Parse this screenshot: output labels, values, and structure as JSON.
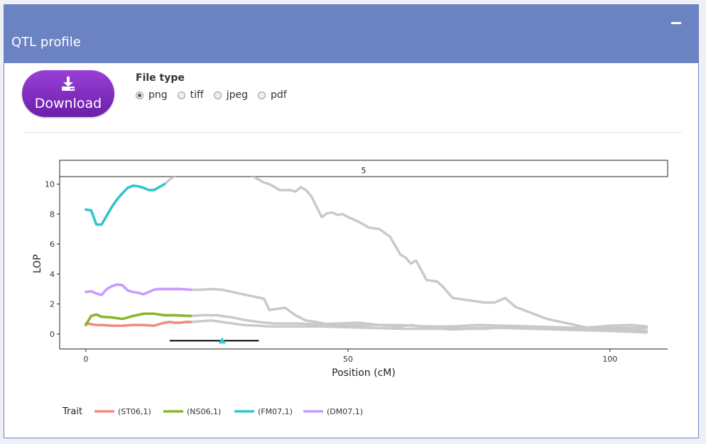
{
  "panel": {
    "title": "QTL profile"
  },
  "download": {
    "label": "Download",
    "icon": "download-icon"
  },
  "file_type": {
    "label": "File type",
    "options": [
      "png",
      "tiff",
      "jpeg",
      "pdf"
    ],
    "selected": "png"
  },
  "chart_data": {
    "type": "line",
    "facet_label": "5",
    "xlabel": "Position (cM)",
    "ylabel": "LOP",
    "xlim": [
      -5,
      111
    ],
    "ylim": [
      -1,
      10.5
    ],
    "x_ticks": [
      0,
      50,
      100
    ],
    "y_ticks": [
      0,
      2,
      4,
      6,
      8,
      10
    ],
    "legend": {
      "title": "Trait",
      "position": "bottom",
      "entries": [
        {
          "label": "(ST06,1)",
          "color": "#f28b82"
        },
        {
          "label": "(NS06,1)",
          "color": "#8ab62a"
        },
        {
          "label": "(FM07,1)",
          "color": "#2fc6ce"
        },
        {
          "label": "(DM07,1)",
          "color": "#cc99ff"
        }
      ]
    },
    "support_interval": {
      "x_start": 16,
      "x_end": 33,
      "peak": 26,
      "y": -0.45
    },
    "series": [
      {
        "name": "(ST06,1)",
        "color": "#f28b82",
        "highlight_until": 20,
        "x": [
          0,
          1,
          2,
          3,
          5,
          7,
          9,
          11,
          13,
          14,
          15,
          16,
          17,
          18,
          19,
          20,
          22,
          24,
          26,
          28,
          30,
          33,
          35,
          38,
          42,
          45,
          50,
          55,
          60,
          65,
          70,
          75,
          80,
          85,
          90,
          95,
          100,
          104,
          107
        ],
        "y": [
          0.7,
          0.65,
          0.6,
          0.6,
          0.55,
          0.55,
          0.6,
          0.6,
          0.55,
          0.65,
          0.75,
          0.8,
          0.75,
          0.75,
          0.8,
          0.8,
          0.85,
          0.9,
          0.8,
          0.7,
          0.6,
          0.55,
          0.5,
          0.5,
          0.5,
          0.5,
          0.45,
          0.4,
          0.35,
          0.35,
          0.35,
          0.4,
          0.4,
          0.35,
          0.3,
          0.25,
          0.2,
          0.15,
          0.1
        ]
      },
      {
        "name": "(NS06,1)",
        "color": "#8ab62a",
        "highlight_until": 20,
        "x": [
          0,
          0.5,
          1,
          2,
          3,
          5,
          7,
          9,
          11,
          13,
          15,
          17,
          20,
          22,
          25,
          28,
          30,
          33,
          36,
          40,
          44,
          48,
          52,
          56,
          58,
          60,
          62,
          64,
          66,
          68,
          70,
          73,
          76,
          80,
          85,
          90,
          95,
          100,
          104,
          107
        ],
        "y": [
          0.6,
          0.9,
          1.2,
          1.3,
          1.15,
          1.1,
          1.0,
          1.2,
          1.35,
          1.35,
          1.25,
          1.25,
          1.2,
          1.25,
          1.25,
          1.1,
          0.95,
          0.8,
          0.7,
          0.7,
          0.65,
          0.7,
          0.75,
          0.6,
          0.55,
          0.5,
          0.6,
          0.5,
          0.45,
          0.35,
          0.3,
          0.35,
          0.35,
          0.45,
          0.4,
          0.35,
          0.3,
          0.4,
          0.4,
          0.4
        ]
      },
      {
        "name": "(FM07,1)",
        "color": "#2fc6ce",
        "highlight_until": 15,
        "x": [
          0,
          1,
          2,
          3,
          4,
          5,
          6,
          7,
          8,
          9,
          10,
          11,
          12,
          13,
          14,
          15,
          16,
          18,
          20,
          24,
          28,
          32,
          34,
          35,
          36,
          37,
          38,
          39,
          40,
          41,
          42,
          43,
          44,
          45,
          46,
          47,
          48,
          49,
          50,
          52,
          54,
          56,
          58,
          60,
          61,
          62,
          63,
          65,
          67,
          68,
          69,
          70,
          72,
          74,
          76,
          78,
          80,
          82,
          85,
          88,
          92,
          96,
          100,
          104,
          107
        ],
        "y": [
          8.3,
          8.25,
          7.3,
          7.3,
          7.9,
          8.5,
          9.0,
          9.4,
          9.75,
          9.9,
          9.85,
          9.75,
          9.6,
          9.6,
          9.8,
          10.0,
          10.3,
          10.8,
          11.2,
          11.4,
          11.2,
          10.5,
          10.1,
          10.0,
          9.8,
          9.6,
          9.6,
          9.6,
          9.5,
          9.8,
          9.6,
          9.2,
          8.5,
          7.8,
          8.05,
          8.1,
          7.95,
          8.0,
          7.8,
          7.5,
          7.1,
          7.0,
          6.5,
          5.3,
          5.1,
          4.7,
          4.9,
          3.6,
          3.5,
          3.2,
          2.8,
          2.4,
          2.3,
          2.2,
          2.1,
          2.1,
          2.4,
          1.8,
          1.4,
          1.0,
          0.7,
          0.4,
          0.3,
          0.3,
          0.2
        ]
      },
      {
        "name": "(DM07,1)",
        "color": "#cc99ff",
        "highlight_until": 20,
        "x": [
          0,
          1,
          2,
          3,
          4,
          5,
          6,
          7,
          8,
          9,
          10,
          11,
          12,
          13,
          14,
          16,
          18,
          20,
          22,
          24,
          26,
          28,
          30,
          32,
          34,
          35,
          36,
          38,
          40,
          42,
          44,
          46,
          48,
          50,
          55,
          60,
          65,
          70,
          75,
          80,
          85,
          90,
          95,
          100,
          104,
          107
        ],
        "y": [
          2.8,
          2.85,
          2.7,
          2.6,
          3.0,
          3.2,
          3.3,
          3.25,
          2.9,
          2.8,
          2.75,
          2.65,
          2.8,
          2.95,
          3.0,
          3.0,
          3.0,
          2.95,
          2.95,
          3.0,
          2.95,
          2.8,
          2.65,
          2.5,
          2.35,
          1.6,
          1.65,
          1.75,
          1.25,
          0.9,
          0.8,
          0.65,
          0.6,
          0.55,
          0.6,
          0.6,
          0.5,
          0.5,
          0.6,
          0.55,
          0.5,
          0.45,
          0.4,
          0.55,
          0.6,
          0.5
        ]
      }
    ]
  }
}
